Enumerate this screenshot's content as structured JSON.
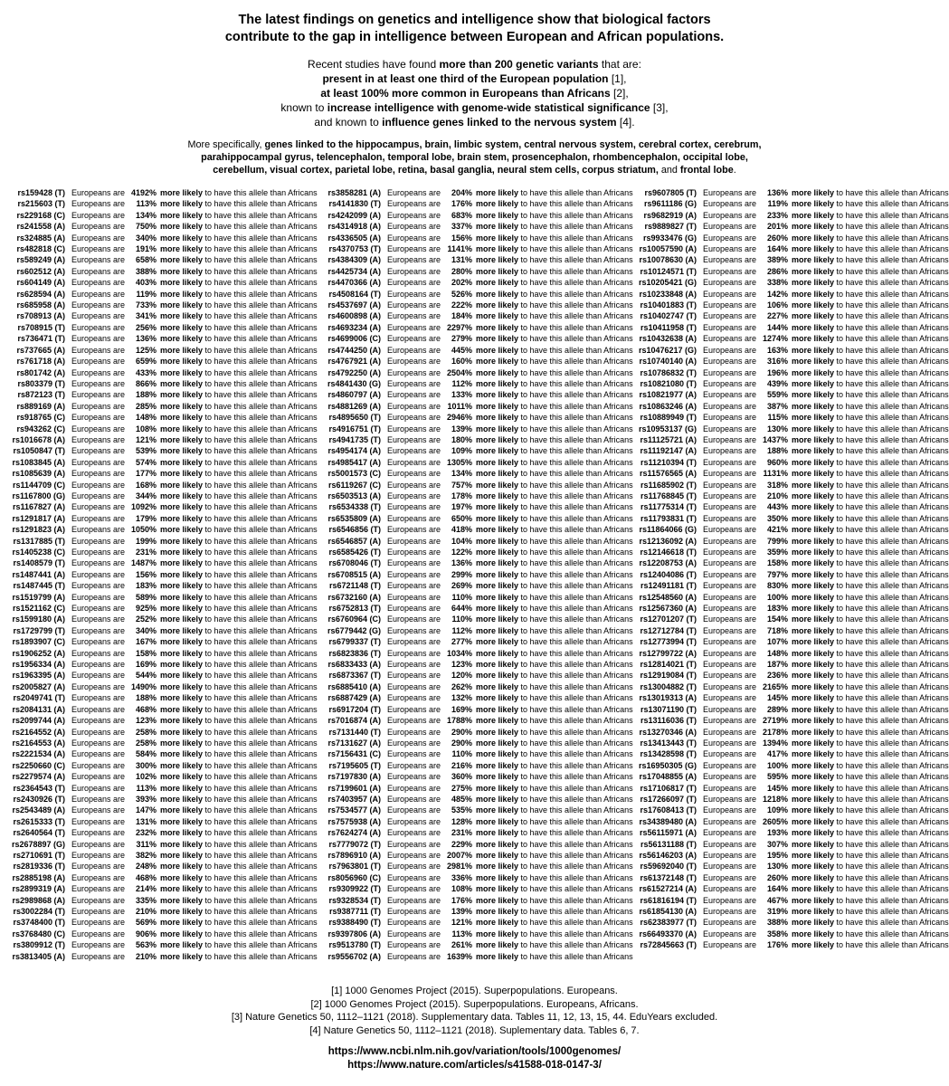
{
  "title": {
    "line1": "The latest findings on genetics and intelligence show that biological factors",
    "line2": "contribute to the gap in intelligence between European and African populations."
  },
  "intro": {
    "lines": [
      [
        {
          "t": "Recent studies have found ",
          "b": false
        },
        {
          "t": "more than 200 genetic variants",
          "b": true
        },
        {
          "t": " that are:",
          "b": false
        }
      ],
      [
        {
          "t": "present in at least one third of the European population",
          "b": true
        },
        {
          "t": " [1],",
          "b": false
        }
      ],
      [
        {
          "t": "at least 100% more common in Europeans than Africans",
          "b": true
        },
        {
          "t": " [2],",
          "b": false
        }
      ],
      [
        {
          "t": "known to ",
          "b": false
        },
        {
          "t": "increase intelligence with genome-wide statistical significance",
          "b": true
        },
        {
          "t": " [3],",
          "b": false
        }
      ],
      [
        {
          "t": "and known to ",
          "b": false
        },
        {
          "t": "influence genes linked to the nervous system",
          "b": true
        },
        {
          "t": " [4].",
          "b": false
        }
      ]
    ]
  },
  "specifics": {
    "lines": [
      [
        {
          "t": "More specifically, ",
          "b": false
        },
        {
          "t": "genes linked to the hippocampus, brain, limbic system, central nervous system, cerebral cortex, cerebrum,",
          "b": true
        }
      ],
      [
        {
          "t": "parahippocampal gyrus, telencephalon, temporal lobe, brain stem, prosencephalon, rhombencephalon, occipital lobe,",
          "b": true
        }
      ],
      [
        {
          "t": "cerebellum, visual cortex, parietal lobe, retina, basal ganglia, neural stem cells, corpus striatum,",
          "b": true
        },
        {
          "t": " and ",
          "b": false
        },
        {
          "t": "frontal lobe",
          "b": true
        },
        {
          "t": ".",
          "b": false
        }
      ]
    ]
  },
  "table": {
    "row_text": {
      "prefix": "Europeans are",
      "emphasis": "more likely",
      "suffix": "to have this allele than Africans"
    },
    "columns": [
      {
        "rows": [
          [
            "rs159428 (T)",
            "4192%"
          ],
          [
            "rs215603 (T)",
            "113%"
          ],
          [
            "rs229168 (C)",
            "134%"
          ],
          [
            "rs241558 (A)",
            "750%"
          ],
          [
            "rs324885 (A)",
            "340%"
          ],
          [
            "rs482818 (C)",
            "191%"
          ],
          [
            "rs589249 (A)",
            "658%"
          ],
          [
            "rs602512 (A)",
            "388%"
          ],
          [
            "rs604149 (A)",
            "403%"
          ],
          [
            "rs628594 (A)",
            "119%"
          ],
          [
            "rs685958 (A)",
            "733%"
          ],
          [
            "rs708913 (A)",
            "341%"
          ],
          [
            "rs708915 (T)",
            "256%"
          ],
          [
            "rs736471 (T)",
            "136%"
          ],
          [
            "rs737665 (A)",
            "125%"
          ],
          [
            "rs761718 (A)",
            "659%"
          ],
          [
            "rs801742 (A)",
            "433%"
          ],
          [
            "rs803379 (T)",
            "866%"
          ],
          [
            "rs872123 (T)",
            "188%"
          ],
          [
            "rs889169 (A)",
            "285%"
          ],
          [
            "rs918765 (C)",
            "148%"
          ],
          [
            "rs943262 (C)",
            "108%"
          ],
          [
            "rs1016678 (A)",
            "121%"
          ],
          [
            "rs1050847 (T)",
            "539%"
          ],
          [
            "rs1083845 (A)",
            "574%"
          ],
          [
            "rs1085639 (A)",
            "177%"
          ],
          [
            "rs1144709 (C)",
            "168%"
          ],
          [
            "rs1167800 (G)",
            "344%"
          ],
          [
            "rs1167827 (A)",
            "1092%"
          ],
          [
            "rs1291817 (A)",
            "179%"
          ],
          [
            "rs1291823 (A)",
            "1050%"
          ],
          [
            "rs1317885 (T)",
            "199%"
          ],
          [
            "rs1405238 (C)",
            "231%"
          ],
          [
            "rs1408579 (T)",
            "1487%"
          ],
          [
            "rs1487441 (A)",
            "156%"
          ],
          [
            "rs1487445 (T)",
            "183%"
          ],
          [
            "rs1519799 (A)",
            "589%"
          ],
          [
            "rs1521162 (C)",
            "925%"
          ],
          [
            "rs1599180 (A)",
            "252%"
          ],
          [
            "rs1729799 (T)",
            "340%"
          ],
          [
            "rs1893907 (C)",
            "167%"
          ],
          [
            "rs1906252 (A)",
            "158%"
          ],
          [
            "rs1956334 (A)",
            "169%"
          ],
          [
            "rs1963395 (A)",
            "544%"
          ],
          [
            "rs2005827 (A)",
            "1490%"
          ],
          [
            "rs2049741 (T)",
            "188%"
          ],
          [
            "rs2084131 (A)",
            "468%"
          ],
          [
            "rs2099744 (A)",
            "123%"
          ],
          [
            "rs2164552 (A)",
            "258%"
          ],
          [
            "rs2164553 (A)",
            "258%"
          ],
          [
            "rs2221534 (A)",
            "584%"
          ],
          [
            "rs2250660 (C)",
            "300%"
          ],
          [
            "rs2279574 (A)",
            "102%"
          ],
          [
            "rs2364543 (T)",
            "113%"
          ],
          [
            "rs2430926 (T)",
            "393%"
          ],
          [
            "rs2543489 (A)",
            "147%"
          ],
          [
            "rs2615333 (T)",
            "131%"
          ],
          [
            "rs2640564 (T)",
            "232%"
          ],
          [
            "rs2678897 (G)",
            "311%"
          ],
          [
            "rs2710691 (T)",
            "382%"
          ],
          [
            "rs2819336 (T)",
            "248%"
          ],
          [
            "rs2885198 (A)",
            "468%"
          ],
          [
            "rs2899319 (A)",
            "214%"
          ],
          [
            "rs2989868 (A)",
            "335%"
          ],
          [
            "rs3002284 (T)",
            "210%"
          ],
          [
            "rs3748400 (T)",
            "569%"
          ],
          [
            "rs3768480 (C)",
            "906%"
          ],
          [
            "rs3809912 (T)",
            "563%"
          ],
          [
            "rs3813405 (A)",
            "210%"
          ]
        ]
      },
      {
        "rows": [
          [
            "rs3858281 (A)",
            "204%"
          ],
          [
            "rs4141830 (T)",
            "176%"
          ],
          [
            "rs4242099 (A)",
            "683%"
          ],
          [
            "rs4314918 (A)",
            "337%"
          ],
          [
            "rs4336505 (A)",
            "156%"
          ],
          [
            "rs4370753 (T)",
            "1141%"
          ],
          [
            "rs4384309 (A)",
            "131%"
          ],
          [
            "rs4425734 (A)",
            "280%"
          ],
          [
            "rs4470366 (A)",
            "202%"
          ],
          [
            "rs4508164 (T)",
            "526%"
          ],
          [
            "rs4537697 (A)",
            "222%"
          ],
          [
            "rs4600898 (A)",
            "184%"
          ],
          [
            "rs4693234 (A)",
            "2297%"
          ],
          [
            "rs4699006 (C)",
            "279%"
          ],
          [
            "rs4744250 (A)",
            "445%"
          ],
          [
            "rs4767921 (A)",
            "160%"
          ],
          [
            "rs4792250 (A)",
            "2504%"
          ],
          [
            "rs4841430 (G)",
            "112%"
          ],
          [
            "rs4860797 (A)",
            "133%"
          ],
          [
            "rs4881269 (A)",
            "1011%"
          ],
          [
            "rs4895650 (T)",
            "2946%"
          ],
          [
            "rs4916751 (T)",
            "139%"
          ],
          [
            "rs4941735 (T)",
            "180%"
          ],
          [
            "rs4954174 (A)",
            "109%"
          ],
          [
            "rs4985417 (A)",
            "1305%"
          ],
          [
            "rs5001573 (C)",
            "134%"
          ],
          [
            "rs6119267 (C)",
            "757%"
          ],
          [
            "rs6503513 (A)",
            "178%"
          ],
          [
            "rs6534338 (T)",
            "197%"
          ],
          [
            "rs6535809 (A)",
            "650%"
          ],
          [
            "rs6546856 (T)",
            "418%"
          ],
          [
            "rs6546857 (A)",
            "104%"
          ],
          [
            "rs6585426 (T)",
            "122%"
          ],
          [
            "rs6708046 (T)",
            "136%"
          ],
          [
            "rs6708515 (A)",
            "299%"
          ],
          [
            "rs6721148 (T)",
            "269%"
          ],
          [
            "rs6732160 (A)",
            "110%"
          ],
          [
            "rs6752813 (T)",
            "644%"
          ],
          [
            "rs6760964 (C)",
            "110%"
          ],
          [
            "rs6779442 (G)",
            "112%"
          ],
          [
            "rs6799337 (T)",
            "277%"
          ],
          [
            "rs6823836 (T)",
            "1034%"
          ],
          [
            "rs6833433 (A)",
            "123%"
          ],
          [
            "rs6873367 (T)",
            "120%"
          ],
          [
            "rs6885410 (A)",
            "262%"
          ],
          [
            "rs6887429 (A)",
            "132%"
          ],
          [
            "rs6917204 (T)",
            "169%"
          ],
          [
            "rs7016874 (A)",
            "1788%"
          ],
          [
            "rs7131440 (T)",
            "290%"
          ],
          [
            "rs7131627 (A)",
            "290%"
          ],
          [
            "rs7156431 (C)",
            "110%"
          ],
          [
            "rs7195605 (T)",
            "216%"
          ],
          [
            "rs7197830 (A)",
            "360%"
          ],
          [
            "rs7199601 (A)",
            "275%"
          ],
          [
            "rs7403957 (A)",
            "485%"
          ],
          [
            "rs7534577 (A)",
            "535%"
          ],
          [
            "rs7575938 (A)",
            "128%"
          ],
          [
            "rs7624274 (A)",
            "231%"
          ],
          [
            "rs7779072 (T)",
            "229%"
          ],
          [
            "rs7896910 (A)",
            "2007%"
          ],
          [
            "rs7963801 (T)",
            "2981%"
          ],
          [
            "rs8056960 (C)",
            "336%"
          ],
          [
            "rs9309922 (T)",
            "108%"
          ],
          [
            "rs9328534 (T)",
            "176%"
          ],
          [
            "rs9387711 (T)",
            "139%"
          ],
          [
            "rs9388490 (T)",
            "121%"
          ],
          [
            "rs9397806 (A)",
            "113%"
          ],
          [
            "rs9513780 (T)",
            "261%"
          ],
          [
            "rs9556702 (A)",
            "1639%"
          ]
        ]
      },
      {
        "rows": [
          [
            "rs9607805 (T)",
            "136%"
          ],
          [
            "rs9611186 (G)",
            "119%"
          ],
          [
            "rs9682919 (A)",
            "233%"
          ],
          [
            "rs9889827 (T)",
            "201%"
          ],
          [
            "rs9933476 (G)",
            "260%"
          ],
          [
            "rs10057590 (A)",
            "164%"
          ],
          [
            "rs10078630 (A)",
            "389%"
          ],
          [
            "rs10124571 (T)",
            "286%"
          ],
          [
            "rs10205421 (G)",
            "338%"
          ],
          [
            "rs10233848 (A)",
            "142%"
          ],
          [
            "rs10401883 (T)",
            "106%"
          ],
          [
            "rs10402747 (T)",
            "227%"
          ],
          [
            "rs10411958 (T)",
            "144%"
          ],
          [
            "rs10432638 (A)",
            "1274%"
          ],
          [
            "rs10476217 (G)",
            "163%"
          ],
          [
            "rs10740140 (A)",
            "316%"
          ],
          [
            "rs10786832 (T)",
            "196%"
          ],
          [
            "rs10821080 (T)",
            "439%"
          ],
          [
            "rs10821977 (A)",
            "559%"
          ],
          [
            "rs10863246 (A)",
            "387%"
          ],
          [
            "rs10889949 (T)",
            "115%"
          ],
          [
            "rs10953137 (G)",
            "130%"
          ],
          [
            "rs11125721 (A)",
            "1437%"
          ],
          [
            "rs11192147 (A)",
            "188%"
          ],
          [
            "rs11210394 (T)",
            "960%"
          ],
          [
            "rs11576565 (A)",
            "1131%"
          ],
          [
            "rs11685902 (T)",
            "318%"
          ],
          [
            "rs11768845 (T)",
            "210%"
          ],
          [
            "rs11775314 (T)",
            "443%"
          ],
          [
            "rs11793831 (T)",
            "350%"
          ],
          [
            "rs11864066 (G)",
            "421%"
          ],
          [
            "rs12136092 (A)",
            "799%"
          ],
          [
            "rs12146618 (T)",
            "359%"
          ],
          [
            "rs12208753 (A)",
            "158%"
          ],
          [
            "rs12404086 (T)",
            "797%"
          ],
          [
            "rs12491181 (T)",
            "830%"
          ],
          [
            "rs12548560 (A)",
            "100%"
          ],
          [
            "rs12567360 (A)",
            "183%"
          ],
          [
            "rs12701207 (T)",
            "154%"
          ],
          [
            "rs12712784 (T)",
            "718%"
          ],
          [
            "rs12773994 (T)",
            "107%"
          ],
          [
            "rs12799722 (A)",
            "148%"
          ],
          [
            "rs12814021 (T)",
            "187%"
          ],
          [
            "rs12919084 (T)",
            "236%"
          ],
          [
            "rs13004882 (T)",
            "2165%"
          ],
          [
            "rs13019313 (A)",
            "145%"
          ],
          [
            "rs13071190 (T)",
            "289%"
          ],
          [
            "rs13116036 (T)",
            "2719%"
          ],
          [
            "rs13270346 (A)",
            "2178%"
          ],
          [
            "rs13413443 (T)",
            "1394%"
          ],
          [
            "rs13428598 (T)",
            "417%"
          ],
          [
            "rs16950305 (G)",
            "100%"
          ],
          [
            "rs17048855 (A)",
            "595%"
          ],
          [
            "rs17106817 (T)",
            "145%"
          ],
          [
            "rs17266097 (T)",
            "1218%"
          ],
          [
            "rs17608413 (T)",
            "109%"
          ],
          [
            "rs34389480 (A)",
            "2605%"
          ],
          [
            "rs56115971 (A)",
            "193%"
          ],
          [
            "rs56131188 (T)",
            "307%"
          ],
          [
            "rs56146203 (A)",
            "195%"
          ],
          [
            "rs59692040 (T)",
            "130%"
          ],
          [
            "rs61372148 (T)",
            "260%"
          ],
          [
            "rs61527214 (A)",
            "164%"
          ],
          [
            "rs61816194 (T)",
            "467%"
          ],
          [
            "rs61854130 (A)",
            "319%"
          ],
          [
            "rs62383977 (T)",
            "388%"
          ],
          [
            "rs66493370 (A)",
            "358%"
          ],
          [
            "rs72845663 (T)",
            "176%"
          ]
        ]
      }
    ]
  },
  "references": [
    "[1] 1000 Genomes Project (2015). Superpopulations. Europeans.",
    "[2] 1000 Genomes Project (2015). Superpopulations. Europeans, Africans.",
    "[3] Nature Genetics 50, 1112–1121 (2018). Supplementary data. Tables 11, 12, 13, 15, 44. EduYears excluded.",
    "[4] Nature Genetics 50, 1112–1121 (2018). Suplementary data. Tables 6, 7."
  ],
  "links": {
    "ncbi": "https://www.ncbi.nlm.nih.gov/variation/tools/1000genomes/",
    "nature": "https://www.nature.com/articles/s41588-018-0147-3/"
  }
}
